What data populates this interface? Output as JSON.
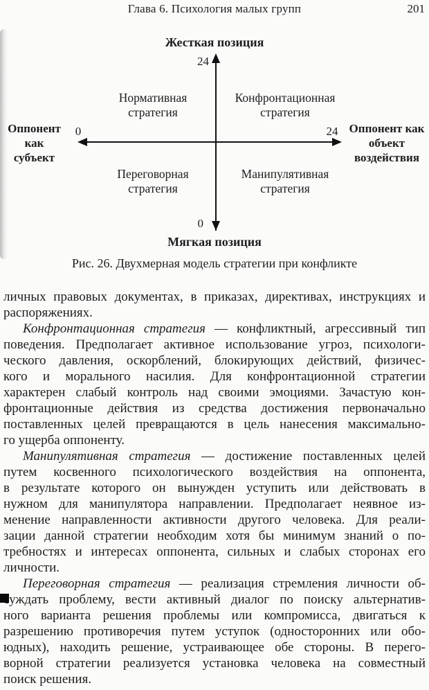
{
  "colors": {
    "ink": "#1d1d1d",
    "paper": "#fbfbfa"
  },
  "header": {
    "chapter": "Глава 6. Психология малых групп",
    "page_number": "201"
  },
  "figure": {
    "top_axis_title": "Жесткая позиция",
    "bottom_axis_title": "Мягкая позиция",
    "v_max": "24",
    "v_min": "0",
    "h_min": "0",
    "h_max": "24",
    "left_axis_label": {
      "line1": "Оппонент",
      "line2": "как",
      "line3": "субъект"
    },
    "right_axis_label": {
      "line1": "Оппонент как",
      "line2": "объект",
      "line3": "воздействия"
    },
    "quadrants": {
      "nw": {
        "line1": "Нормативная",
        "line2": "стратегия"
      },
      "ne": {
        "line1": "Конфронтационная",
        "line2": "стратегия"
      },
      "sw": {
        "line1": "Переговорная",
        "line2": "стратегия"
      },
      "se": {
        "line1": "Манипулятивная",
        "line2": "стратегия"
      }
    },
    "caption": "Рис. 26. Двухмерная модель стратегии при конфликте"
  },
  "body": {
    "paragraphs": [
      {
        "indent": false,
        "lead": null,
        "lines": [
          "личных правовых документах, в приказах, директивах, инструкциях и",
          "распоряжениях."
        ]
      },
      {
        "indent": true,
        "lead": "Конфронтационная стратегия",
        "lines": [
          " — конфликтный, агрессивный тип",
          "поведения. Предполагает активное использование угроз, психологи-",
          "ческого давления, оскорблений, блокирующих действий, физичес-",
          "кого и морального насилия. Для конфронтационной стратегии",
          "характерен слабый контроль над своими эмоциями. Зачастую кон-",
          "фронтационные действия из средства достижения первоначально",
          "поставленных целей превращаются в цель нанесения максимально-",
          "го ущерба оппоненту."
        ]
      },
      {
        "indent": true,
        "lead": "Манипулятивная стратегия",
        "lines": [
          " — достижение поставленных целей",
          "путем косвенного психологического воздействия на оппонента,",
          "в результате которого он вынужден уступить или действовать в",
          "нужном для манипулятора направлении. Предполагает неявное из-",
          "менение направленности активности другого человека. Для реали-",
          "зации данной стратегии необходим хотя бы минимум знаний о по-",
          "требностях и интересах оппонента, сильных и слабых сторонах его",
          "личности."
        ]
      },
      {
        "indent": true,
        "lead": "Переговорная стратегия",
        "lines": [
          " — реализация стремления личности об-",
          "суждать проблему, вести активный диалог по поиску альтернатив-",
          "ного варианта решения проблемы или компромисса, двигаться к",
          "разрешению противоречия путем уступок (односторонних или обо-",
          "юдных), находить решение, устраивающее обе стороны. В перего-",
          "ворной стратегии реализуется установка человека на совместный",
          "поиск решения."
        ]
      }
    ]
  }
}
